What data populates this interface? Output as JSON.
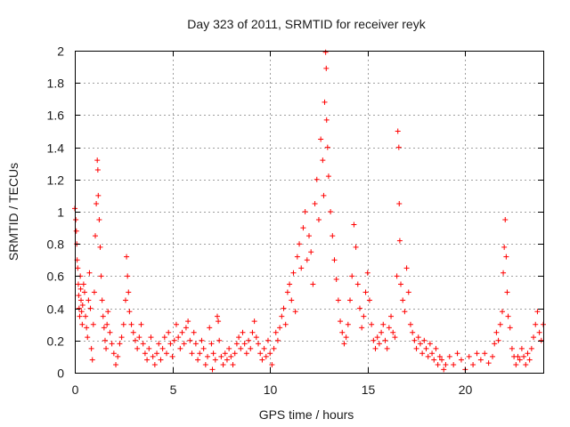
{
  "chart_data": {
    "type": "scatter",
    "title": "Day 323 of 2011, SRMTID for receiver reyk",
    "xlabel": "GPS time / hours",
    "ylabel": "SRMTID / TECUs",
    "xlim": [
      0,
      24
    ],
    "ylim": [
      0,
      2
    ],
    "xticks": [
      0,
      5,
      10,
      15,
      20
    ],
    "yticks": [
      0,
      0.2,
      0.4,
      0.6,
      0.8,
      1,
      1.2,
      1.4,
      1.6,
      1.8,
      2
    ],
    "grid": true,
    "legend": "none",
    "marker": "+",
    "color": "#ff0000",
    "series": [
      {
        "points": [
          [
            0.0,
            1.02
          ],
          [
            0.05,
            0.95
          ],
          [
            0.08,
            0.88
          ],
          [
            0.1,
            0.8
          ],
          [
            0.12,
            0.7
          ],
          [
            0.15,
            0.65
          ],
          [
            0.18,
            0.55
          ],
          [
            0.2,
            0.48
          ],
          [
            0.22,
            0.4
          ],
          [
            0.25,
            0.35
          ],
          [
            0.28,
            0.6
          ],
          [
            0.3,
            0.52
          ],
          [
            0.32,
            0.45
          ],
          [
            0.35,
            0.38
          ],
          [
            0.38,
            0.3
          ],
          [
            0.4,
            0.42
          ],
          [
            0.45,
            0.55
          ],
          [
            0.5,
            0.5
          ],
          [
            0.55,
            0.35
          ],
          [
            0.6,
            0.28
          ],
          [
            0.65,
            0.22
          ],
          [
            0.7,
            0.45
          ],
          [
            0.75,
            0.62
          ],
          [
            0.8,
            0.4
          ],
          [
            0.85,
            0.15
          ],
          [
            0.9,
            0.08
          ],
          [
            0.95,
            0.3
          ],
          [
            1.0,
            0.5
          ],
          [
            1.05,
            0.85
          ],
          [
            1.1,
            1.05
          ],
          [
            1.15,
            1.32
          ],
          [
            1.18,
            1.26
          ],
          [
            1.2,
            1.1
          ],
          [
            1.25,
            0.95
          ],
          [
            1.3,
            0.78
          ],
          [
            1.35,
            0.6
          ],
          [
            1.4,
            0.45
          ],
          [
            1.45,
            0.35
          ],
          [
            1.5,
            0.28
          ],
          [
            1.55,
            0.2
          ],
          [
            1.6,
            0.15
          ],
          [
            1.65,
            0.3
          ],
          [
            1.7,
            0.38
          ],
          [
            1.8,
            0.25
          ],
          [
            1.9,
            0.18
          ],
          [
            2.0,
            0.12
          ],
          [
            2.1,
            0.05
          ],
          [
            2.2,
            0.1
          ],
          [
            2.3,
            0.18
          ],
          [
            2.4,
            0.22
          ],
          [
            2.5,
            0.3
          ],
          [
            2.6,
            0.45
          ],
          [
            2.65,
            0.72
          ],
          [
            2.7,
            0.6
          ],
          [
            2.75,
            0.5
          ],
          [
            2.8,
            0.38
          ],
          [
            2.9,
            0.3
          ],
          [
            3.0,
            0.25
          ],
          [
            3.1,
            0.2
          ],
          [
            3.2,
            0.15
          ],
          [
            3.3,
            0.22
          ],
          [
            3.4,
            0.3
          ],
          [
            3.5,
            0.18
          ],
          [
            3.6,
            0.12
          ],
          [
            3.7,
            0.08
          ],
          [
            3.8,
            0.15
          ],
          [
            3.9,
            0.22
          ],
          [
            4.0,
            0.1
          ],
          [
            4.1,
            0.05
          ],
          [
            4.2,
            0.12
          ],
          [
            4.3,
            0.18
          ],
          [
            4.4,
            0.08
          ],
          [
            4.5,
            0.15
          ],
          [
            4.6,
            0.22
          ],
          [
            4.7,
            0.12
          ],
          [
            4.8,
            0.25
          ],
          [
            4.9,
            0.18
          ],
          [
            5.0,
            0.1
          ],
          [
            5.1,
            0.2
          ],
          [
            5.2,
            0.3
          ],
          [
            5.3,
            0.22
          ],
          [
            5.4,
            0.15
          ],
          [
            5.5,
            0.25
          ],
          [
            5.6,
            0.18
          ],
          [
            5.7,
            0.28
          ],
          [
            5.8,
            0.32
          ],
          [
            5.9,
            0.2
          ],
          [
            6.0,
            0.12
          ],
          [
            6.1,
            0.25
          ],
          [
            6.2,
            0.18
          ],
          [
            6.3,
            0.08
          ],
          [
            6.4,
            0.12
          ],
          [
            6.5,
            0.2
          ],
          [
            6.6,
            0.15
          ],
          [
            6.7,
            0.05
          ],
          [
            6.8,
            0.1
          ],
          [
            6.9,
            0.28
          ],
          [
            7.0,
            0.18
          ],
          [
            7.05,
            0.02
          ],
          [
            7.1,
            0.12
          ],
          [
            7.2,
            0.08
          ],
          [
            7.3,
            0.35
          ],
          [
            7.35,
            0.32
          ],
          [
            7.4,
            0.2
          ],
          [
            7.5,
            0.1
          ],
          [
            7.6,
            0.05
          ],
          [
            7.7,
            0.12
          ],
          [
            7.8,
            0.08
          ],
          [
            7.9,
            0.15
          ],
          [
            8.0,
            0.1
          ],
          [
            8.1,
            0.05
          ],
          [
            8.2,
            0.12
          ],
          [
            8.3,
            0.18
          ],
          [
            8.4,
            0.22
          ],
          [
            8.5,
            0.15
          ],
          [
            8.6,
            0.25
          ],
          [
            8.7,
            0.18
          ],
          [
            8.8,
            0.12
          ],
          [
            8.9,
            0.2
          ],
          [
            9.0,
            0.15
          ],
          [
            9.1,
            0.25
          ],
          [
            9.2,
            0.32
          ],
          [
            9.3,
            0.22
          ],
          [
            9.4,
            0.18
          ],
          [
            9.5,
            0.12
          ],
          [
            9.6,
            0.08
          ],
          [
            9.7,
            0.15
          ],
          [
            9.8,
            0.1
          ],
          [
            9.9,
            0.2
          ],
          [
            10.0,
            0.12
          ],
          [
            10.1,
            0.05
          ],
          [
            10.2,
            0.15
          ],
          [
            10.3,
            0.25
          ],
          [
            10.4,
            0.2
          ],
          [
            10.5,
            0.28
          ],
          [
            10.6,
            0.35
          ],
          [
            10.7,
            0.4
          ],
          [
            10.8,
            0.3
          ],
          [
            10.9,
            0.5
          ],
          [
            11.0,
            0.55
          ],
          [
            11.1,
            0.45
          ],
          [
            11.2,
            0.62
          ],
          [
            11.3,
            0.38
          ],
          [
            11.4,
            0.72
          ],
          [
            11.5,
            0.8
          ],
          [
            11.6,
            0.65
          ],
          [
            11.7,
            0.9
          ],
          [
            11.8,
            1.0
          ],
          [
            11.9,
            0.7
          ],
          [
            12.0,
            0.85
          ],
          [
            12.1,
            0.75
          ],
          [
            12.2,
            0.55
          ],
          [
            12.3,
            1.05
          ],
          [
            12.4,
            1.2
          ],
          [
            12.5,
            0.95
          ],
          [
            12.6,
            1.45
          ],
          [
            12.7,
            1.32
          ],
          [
            12.75,
            1.1
          ],
          [
            12.8,
            1.68
          ],
          [
            12.85,
            1.99
          ],
          [
            12.88,
            1.89
          ],
          [
            12.9,
            1.57
          ],
          [
            12.95,
            1.4
          ],
          [
            13.0,
            1.22
          ],
          [
            13.1,
            1.0
          ],
          [
            13.2,
            0.85
          ],
          [
            13.3,
            0.7
          ],
          [
            13.4,
            0.58
          ],
          [
            13.5,
            0.45
          ],
          [
            13.6,
            0.32
          ],
          [
            13.7,
            0.25
          ],
          [
            13.8,
            0.18
          ],
          [
            13.9,
            0.22
          ],
          [
            14.0,
            0.3
          ],
          [
            14.1,
            0.45
          ],
          [
            14.2,
            0.6
          ],
          [
            14.3,
            0.92
          ],
          [
            14.4,
            0.78
          ],
          [
            14.5,
            0.55
          ],
          [
            14.6,
            0.4
          ],
          [
            14.7,
            0.28
          ],
          [
            14.8,
            0.35
          ],
          [
            14.9,
            0.5
          ],
          [
            15.0,
            0.62
          ],
          [
            15.1,
            0.45
          ],
          [
            15.2,
            0.3
          ],
          [
            15.3,
            0.2
          ],
          [
            15.4,
            0.15
          ],
          [
            15.5,
            0.22
          ],
          [
            15.6,
            0.18
          ],
          [
            15.7,
            0.25
          ],
          [
            15.8,
            0.3
          ],
          [
            15.9,
            0.2
          ],
          [
            16.0,
            0.15
          ],
          [
            16.1,
            0.28
          ],
          [
            16.2,
            0.35
          ],
          [
            16.3,
            0.25
          ],
          [
            16.4,
            0.22
          ],
          [
            16.5,
            0.6
          ],
          [
            16.55,
            1.5
          ],
          [
            16.6,
            1.4
          ],
          [
            16.62,
            1.05
          ],
          [
            16.65,
            0.82
          ],
          [
            16.7,
            0.55
          ],
          [
            16.8,
            0.45
          ],
          [
            16.9,
            0.38
          ],
          [
            17.0,
            0.65
          ],
          [
            17.1,
            0.5
          ],
          [
            17.2,
            0.3
          ],
          [
            17.3,
            0.25
          ],
          [
            17.4,
            0.2
          ],
          [
            17.5,
            0.15
          ],
          [
            17.6,
            0.22
          ],
          [
            17.7,
            0.18
          ],
          [
            17.8,
            0.12
          ],
          [
            17.9,
            0.2
          ],
          [
            18.0,
            0.15
          ],
          [
            18.1,
            0.1
          ],
          [
            18.2,
            0.18
          ],
          [
            18.3,
            0.12
          ],
          [
            18.4,
            0.08
          ],
          [
            18.5,
            0.15
          ],
          [
            18.6,
            0.05
          ],
          [
            18.7,
            0.1
          ],
          [
            18.8,
            0.08
          ],
          [
            18.9,
            0.02
          ],
          [
            19.0,
            0.05
          ],
          [
            19.2,
            0.1
          ],
          [
            19.4,
            0.05
          ],
          [
            19.6,
            0.12
          ],
          [
            19.8,
            0.08
          ],
          [
            20.0,
            0.02
          ],
          [
            20.2,
            0.1
          ],
          [
            20.4,
            0.05
          ],
          [
            20.6,
            0.12
          ],
          [
            20.8,
            0.08
          ],
          [
            21.0,
            0.12
          ],
          [
            21.2,
            0.06
          ],
          [
            21.4,
            0.1
          ],
          [
            21.5,
            0.18
          ],
          [
            21.6,
            0.25
          ],
          [
            21.7,
            0.2
          ],
          [
            21.8,
            0.3
          ],
          [
            21.9,
            0.38
          ],
          [
            21.95,
            0.62
          ],
          [
            22.0,
            0.78
          ],
          [
            22.05,
            0.95
          ],
          [
            22.1,
            0.72
          ],
          [
            22.15,
            0.5
          ],
          [
            22.2,
            0.35
          ],
          [
            22.3,
            0.28
          ],
          [
            22.4,
            0.15
          ],
          [
            22.5,
            0.1
          ],
          [
            22.6,
            0.05
          ],
          [
            22.7,
            0.1
          ],
          [
            22.8,
            0.08
          ],
          [
            22.9,
            0.15
          ],
          [
            23.0,
            0.1
          ],
          [
            23.1,
            0.05
          ],
          [
            23.2,
            0.12
          ],
          [
            23.3,
            0.08
          ],
          [
            23.4,
            0.15
          ],
          [
            23.5,
            0.22
          ],
          [
            23.6,
            0.3
          ],
          [
            23.7,
            0.38
          ],
          [
            23.8,
            0.25
          ],
          [
            23.9,
            0.2
          ],
          [
            24.0,
            0.3
          ]
        ]
      }
    ]
  }
}
